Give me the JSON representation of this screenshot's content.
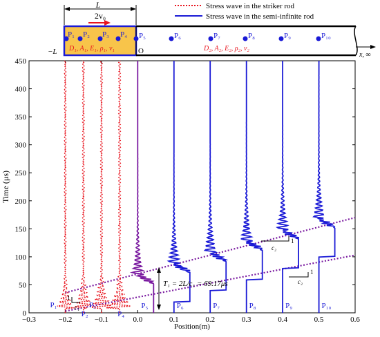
{
  "legend": {
    "striker": "Stress wave in the striker rod",
    "semi": "Stress wave in the semi-infinite rod"
  },
  "schematic": {
    "length_label": "L",
    "velocity_label": "2v₀",
    "neg_length_label": "−L",
    "origin_label": "O",
    "striker_props": "D₁, A₁, E₁, ρ₁, v₁",
    "semi_props": "D₂, A₂, E₂, ρ₂, v₂",
    "x_infinity_label": "x, ∞",
    "striker_points": [
      "P₁",
      "P₂",
      "P₃",
      "P₄"
    ],
    "semi_points": [
      "P₅",
      "P₆",
      "P₇",
      "P₈",
      "P₉",
      "P₁₀"
    ]
  },
  "annotations": {
    "period_label": "T₁ = 2L/c₁ = 69.17μs",
    "slope_c1": "c₁",
    "slope_c2_upper": "c₂",
    "slope_c2_lower": "c₂",
    "slope_one": "1"
  },
  "chart_data": {
    "type": "line",
    "xlabel": "Position(m)",
    "ylabel": "Time (μs)",
    "xlim": [
      -0.3,
      0.6
    ],
    "ylim": [
      0,
      450
    ],
    "xticks": [
      "−0.3",
      "−0.2",
      "−0.1",
      "0.0",
      "0.1",
      "0.2",
      "0.3",
      "0.4",
      "0.5",
      "0.6"
    ],
    "yticks": [
      "0",
      "50",
      "100",
      "150",
      "200",
      "250",
      "300",
      "350",
      "400",
      "450"
    ],
    "grid": false,
    "legend_position": "top-right",
    "colors": {
      "striker": "#e8141e",
      "semi": "#1a1ad6",
      "front": "#7a1aa0",
      "fill": "#f8c44a"
    },
    "series": [
      {
        "name": "Stress wave in the striker rod",
        "points": [
          {
            "label": "P₁",
            "x": -0.2
          },
          {
            "label": "P₂",
            "x": -0.15
          },
          {
            "label": "P₃",
            "x": -0.1
          },
          {
            "label": "P₄",
            "x": -0.05
          }
        ]
      },
      {
        "name": "Stress wave in the semi-infinite rod",
        "points": [
          {
            "label": "P₅",
            "x": 0.0,
            "arrival": 0
          },
          {
            "label": "P₆",
            "x": 0.1,
            "arrival": 20
          },
          {
            "label": "P₇",
            "x": 0.2,
            "arrival": 40
          },
          {
            "label": "P₈",
            "x": 0.3,
            "arrival": 60
          },
          {
            "label": "P₉",
            "x": 0.4,
            "arrival": 80
          },
          {
            "label": "P₁₀",
            "x": 0.5,
            "arrival": 100
          }
        ]
      }
    ],
    "front_lines": [
      {
        "from": [
          -0.2,
          36
        ],
        "to": [
          0.6,
          170
        ]
      },
      {
        "from": [
          -0.2,
          3
        ],
        "to": [
          0.6,
          103
        ]
      }
    ],
    "period": 69.17
  }
}
